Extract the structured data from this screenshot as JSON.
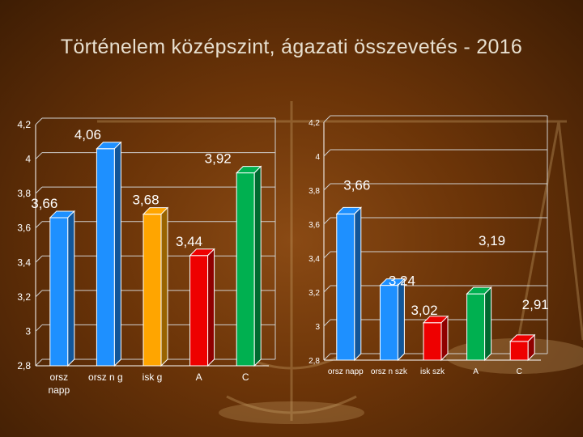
{
  "title": "Történelem középszint, ágazati összevetés - 2016",
  "colors": {
    "background": "#6b3408",
    "bar_blue": "#1e90ff",
    "bar_orange": "#ffa500",
    "bar_red": "#ee0000",
    "bar_green": "#00b050",
    "text": "#ffffff"
  },
  "chart_data": [
    {
      "type": "bar",
      "title": "",
      "xlabel": "",
      "ylabel": "",
      "ylim": [
        2.8,
        4.2
      ],
      "yticks": [
        "2,8",
        "3",
        "3,2",
        "3,4",
        "3,6",
        "3,8",
        "4",
        "4,2"
      ],
      "categories": [
        "orsz napp",
        "orsz n g",
        "isk g",
        "A",
        "C"
      ],
      "values": [
        3.66,
        4.06,
        3.68,
        3.44,
        3.92
      ],
      "data_labels": [
        "3,66",
        "4,06",
        "3,68",
        "3,44",
        "3,92"
      ],
      "bar_colors": [
        "#1e90ff",
        "#1e90ff",
        "#ffa500",
        "#ee0000",
        "#00b050"
      ],
      "grid": true
    },
    {
      "type": "bar",
      "title": "",
      "xlabel": "",
      "ylabel": "",
      "ylim": [
        2.8,
        4.2
      ],
      "yticks": [
        "2,8",
        "3",
        "3,2",
        "3,4",
        "3,6",
        "3,8",
        "4",
        "4,2"
      ],
      "categories": [
        "orsz napp",
        "orsz n szk",
        "isk szk",
        "A",
        "C"
      ],
      "values": [
        3.66,
        3.24,
        3.02,
        3.19,
        2.91
      ],
      "data_labels": [
        "3,66",
        "3,24",
        "3,02",
        "3,19",
        "2,91"
      ],
      "bar_colors": [
        "#1e90ff",
        "#1e90ff",
        "#ee0000",
        "#00b050",
        "#ee0000"
      ],
      "grid": true
    }
  ]
}
